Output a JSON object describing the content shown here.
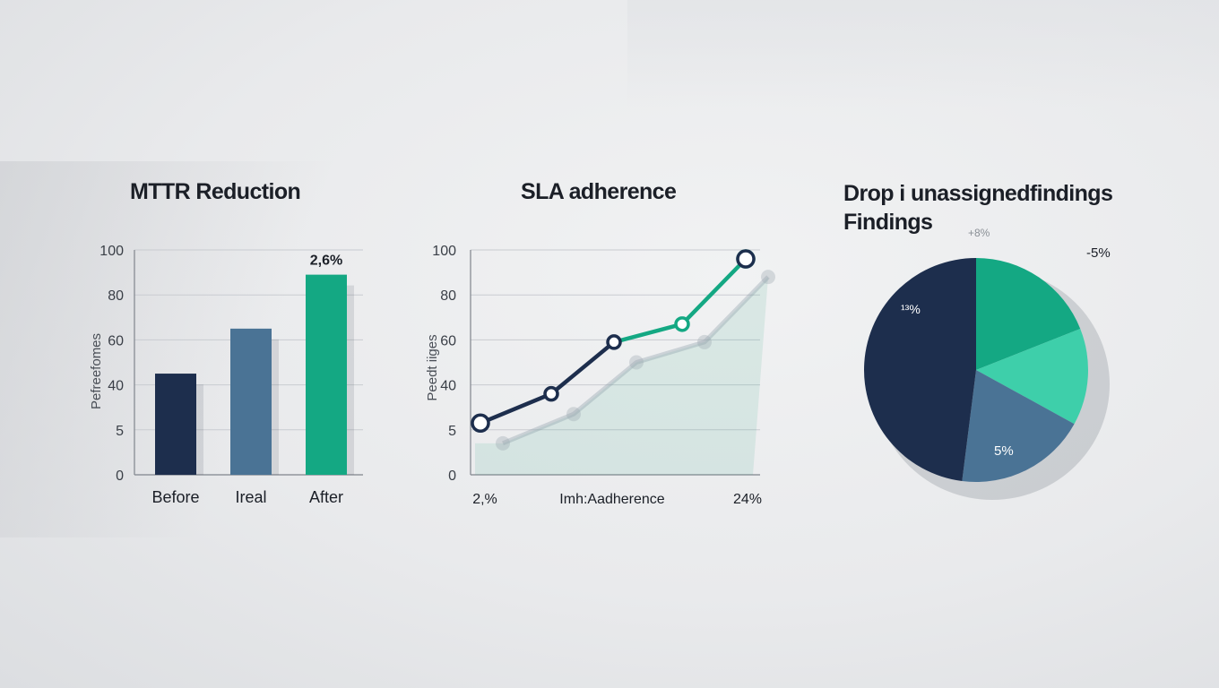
{
  "colors": {
    "navy": "#1d2e4d",
    "steel": "#4a7395",
    "green": "#14a883",
    "mint": "#3ecfaa",
    "grid": "#c9ccd1",
    "axis": "#80858d",
    "text": "#1b1f27",
    "shadow_line": "#8a9aa6"
  },
  "chart_data": [
    {
      "type": "bar",
      "title": "MTTR Reduction",
      "ylabel": "Pefreefomes",
      "yticks": [
        "100",
        "80",
        "60",
        "40",
        "5",
        "0"
      ],
      "ylim": [
        0,
        100
      ],
      "categories": [
        "Before",
        "Ireal",
        "After"
      ],
      "values": [
        45,
        65,
        89
      ],
      "bar_colors": [
        "#1d2e4d",
        "#4a7395",
        "#14a883"
      ],
      "annotation": {
        "label": "2,6%",
        "category_index": 2
      },
      "grid": true
    },
    {
      "type": "line",
      "title": "SLA adherence",
      "ylabel": "Peedt iiges",
      "yticks": [
        "100",
        "80",
        "60",
        "40",
        "5",
        "0"
      ],
      "ylim": [
        0,
        100
      ],
      "xlabels": [
        "2,%",
        "Imh:Aadherence",
        "24%"
      ],
      "series": [
        {
          "values": [
            23,
            36,
            59,
            67,
            96
          ]
        }
      ],
      "shadow_values": [
        14,
        27,
        50,
        59,
        88
      ],
      "grid": true
    },
    {
      "type": "pie",
      "title_lines": [
        "Drop i unassignedfindings",
        "Findings"
      ],
      "title_note": "+8%",
      "slices": [
        {
          "label": "-5%",
          "value": 19,
          "color": "#14a883"
        },
        {
          "label": "",
          "value": 14,
          "color": "#3ecfaa"
        },
        {
          "label": "5%",
          "value": 19,
          "color": "#4a7395"
        },
        {
          "label": "¹³%",
          "value": 48,
          "color": "#1d2e4d"
        }
      ]
    }
  ]
}
